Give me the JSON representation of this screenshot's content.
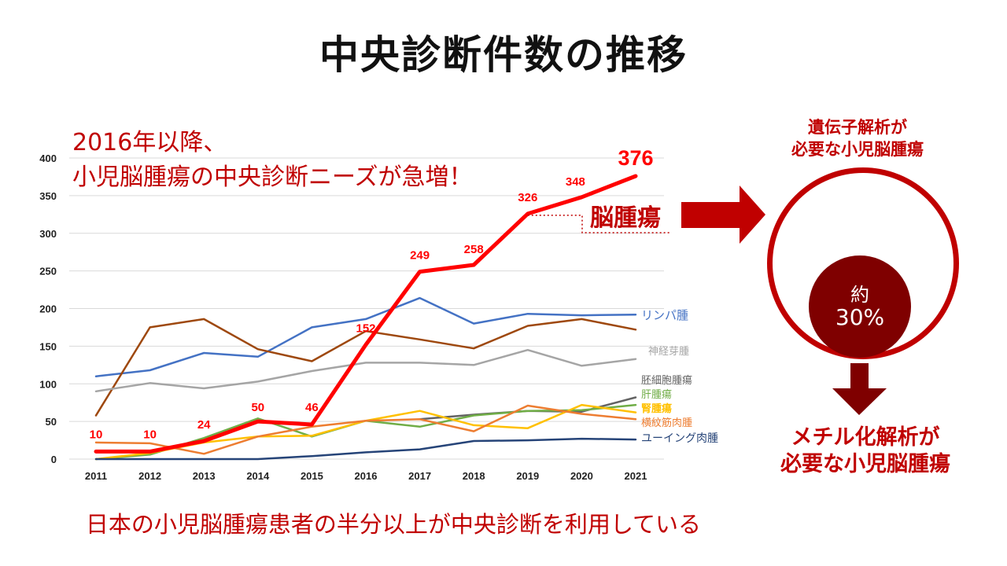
{
  "title": "中央診断件数の推移",
  "headline": {
    "line1": "2016年以降、",
    "line2": "小児脳腫瘍の中央診断ニーズが急増！"
  },
  "bottom_caption": "日本の小児脳腫瘍患者の半分以上が中央診断を利用している",
  "callout": {
    "brain_label": "脳腫瘍",
    "top_label_line1": "遺伝子解析が",
    "top_label_line2": "必要な小児脳腫瘍",
    "inner_line1": "約",
    "inner_line2": "30%",
    "bottom_label_line1": "メチル化解析が",
    "bottom_label_line2": "必要な小児脳腫瘍"
  },
  "colors": {
    "accent_red": "#c00000",
    "dark_red": "#7f0000",
    "brain_tumor": "#ff0000",
    "lymphoma": "#4472c4",
    "brown_series": "#9e480e",
    "neuroblastoma": "#a5a5a5",
    "germ_cell": "#636363",
    "hepatic": "#70ad47",
    "renal": "#ffc000",
    "rhabdomyosarcoma": "#ed7d31",
    "ewing": "#264478"
  },
  "chart_data": {
    "type": "line",
    "categories": [
      "2011",
      "2012",
      "2013",
      "2014",
      "2015",
      "2016",
      "2017",
      "2018",
      "2019",
      "2020",
      "2021"
    ],
    "ylim": [
      0,
      400
    ],
    "yticks": [
      "0",
      "50",
      "100",
      "150",
      "200",
      "250",
      "300",
      "350",
      "400"
    ],
    "grid": true,
    "series": [
      {
        "name": "リンパ腫",
        "values": [
          110,
          118,
          141,
          136,
          175,
          186,
          214,
          180,
          193,
          191,
          192
        ]
      },
      {
        "name": "",
        "values": [
          58,
          175,
          186,
          146,
          130,
          170,
          159,
          147,
          177,
          186,
          172
        ]
      },
      {
        "name": "神経芽腫",
        "values": [
          90,
          101,
          94,
          103,
          117,
          128,
          128,
          125,
          145,
          124,
          133
        ]
      },
      {
        "name": "胚細胞腫瘍",
        "values": [
          null,
          null,
          null,
          null,
          null,
          null,
          53,
          59,
          64,
          63,
          82
        ]
      },
      {
        "name": "肝腫瘍",
        "values": [
          0,
          6,
          28,
          54,
          30,
          51,
          43,
          58,
          64,
          65,
          72
        ]
      },
      {
        "name": "腎腫瘍",
        "values": [
          0,
          8,
          22,
          30,
          31,
          51,
          64,
          45,
          41,
          72,
          62
        ]
      },
      {
        "name": "横紋筋肉腫",
        "values": [
          22,
          21,
          7,
          30,
          43,
          51,
          53,
          37,
          71,
          60,
          53
        ]
      },
      {
        "name": "ユーイング肉腫",
        "values": [
          0,
          0,
          0,
          0,
          4,
          9,
          13,
          24,
          25,
          27,
          26
        ]
      },
      {
        "name": "脳腫瘍",
        "values": [
          10,
          10,
          24,
          50,
          46,
          152,
          249,
          258,
          326,
          348,
          376
        ],
        "data_labels": [
          "10",
          "10",
          "24",
          "50",
          "46",
          "152",
          "249",
          "258",
          "326",
          "348",
          "376"
        ]
      }
    ]
  }
}
